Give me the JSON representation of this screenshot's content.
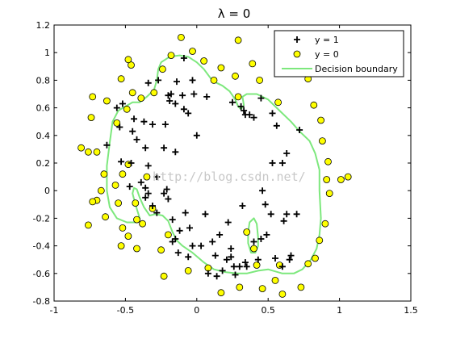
{
  "chart_data": {
    "type": "scatter",
    "title": "λ = 0",
    "xlabel": "",
    "ylabel": "",
    "xlim": [
      -1,
      1.5
    ],
    "ylim": [
      -0.8,
      1.2
    ],
    "grid": false,
    "legend_position": "top-right",
    "xticks": [
      "-1",
      "-0.5",
      "0",
      "0.5",
      "1",
      "1.5"
    ],
    "xtick_values": [
      -1,
      -0.5,
      0,
      0.5,
      1,
      1.5
    ],
    "yticks": [
      "-0.8",
      "-0.6",
      "-0.4",
      "-0.2",
      "0",
      "0.2",
      "0.4",
      "0.6",
      "0.8",
      "1",
      "1.2"
    ],
    "ytick_values": [
      -0.8,
      -0.6,
      -0.4,
      -0.2,
      0,
      0.2,
      0.4,
      0.6,
      0.8,
      1,
      1.2
    ],
    "watermark": "http://blog.csdn.net/",
    "series": [
      {
        "name": "y = 1",
        "marker": "plus",
        "color": "#000000",
        "points": [
          [
            -0.09,
            0.96
          ],
          [
            -0.03,
            0.8
          ],
          [
            -0.14,
            0.79
          ],
          [
            -0.27,
            0.8
          ],
          [
            -0.34,
            0.78
          ],
          [
            -0.2,
            0.69
          ],
          [
            -0.18,
            0.7
          ],
          [
            -0.1,
            0.69
          ],
          [
            -0.02,
            0.7
          ],
          [
            0.07,
            0.68
          ],
          [
            -0.19,
            0.65
          ],
          [
            -0.15,
            0.63
          ],
          [
            -0.09,
            0.59
          ],
          [
            -0.06,
            0.56
          ],
          [
            0.31,
            0.61
          ],
          [
            0.33,
            0.58
          ],
          [
            0.34,
            0.55
          ],
          [
            0.4,
            0.53
          ],
          [
            0.37,
            0.55
          ],
          [
            0.25,
            0.64
          ],
          [
            0.45,
            0.67
          ],
          [
            0.56,
            0.47
          ],
          [
            0.72,
            0.44
          ],
          [
            -0.52,
            0.63
          ],
          [
            -0.56,
            0.6
          ],
          [
            -0.44,
            0.52
          ],
          [
            -0.37,
            0.5
          ],
          [
            -0.31,
            0.48
          ],
          [
            -0.22,
            0.48
          ],
          [
            -0.54,
            0.46
          ],
          [
            -0.45,
            0.43
          ],
          [
            -0.42,
            0.37
          ],
          [
            -0.63,
            0.33
          ],
          [
            -0.36,
            0.31
          ],
          [
            -0.23,
            0.31
          ],
          [
            -0.15,
            0.28
          ],
          [
            0.0,
            0.4
          ],
          [
            -0.53,
            0.21
          ],
          [
            -0.46,
            0.2
          ],
          [
            -0.34,
            0.18
          ],
          [
            -0.28,
            0.1
          ],
          [
            -0.36,
            0.02
          ],
          [
            -0.21,
            0.01
          ],
          [
            -0.23,
            -0.02
          ],
          [
            -0.34,
            -0.02
          ],
          [
            -0.31,
            -0.11
          ],
          [
            -0.28,
            -0.16
          ],
          [
            -0.2,
            -0.06
          ],
          [
            -0.17,
            -0.21
          ],
          [
            -0.12,
            -0.29
          ],
          [
            -0.15,
            -0.35
          ],
          [
            -0.08,
            -0.16
          ],
          [
            0.06,
            -0.17
          ],
          [
            0.11,
            -0.37
          ],
          [
            -0.05,
            -0.27
          ],
          [
            0.22,
            -0.23
          ],
          [
            0.24,
            -0.42
          ],
          [
            0.16,
            -0.32
          ],
          [
            0.32,
            -0.11
          ],
          [
            0.46,
            0.0
          ],
          [
            0.48,
            -0.1
          ],
          [
            0.49,
            -0.32
          ],
          [
            0.45,
            -0.35
          ],
          [
            0.63,
            -0.17
          ],
          [
            0.61,
            -0.22
          ],
          [
            0.7,
            -0.17
          ],
          [
            0.4,
            -0.37
          ],
          [
            0.43,
            -0.5
          ],
          [
            0.55,
            -0.49
          ],
          [
            0.65,
            -0.5
          ],
          [
            0.6,
            -0.55
          ],
          [
            0.53,
            0.2
          ],
          [
            0.6,
            0.2
          ],
          [
            0.63,
            0.27
          ],
          [
            0.53,
            0.56
          ],
          [
            -0.03,
            -0.4
          ],
          [
            -0.17,
            -0.37
          ],
          [
            -0.13,
            -0.45
          ],
          [
            -0.06,
            -0.48
          ],
          [
            0.03,
            -0.4
          ],
          [
            0.13,
            -0.47
          ],
          [
            0.21,
            -0.5
          ],
          [
            0.26,
            -0.55
          ],
          [
            0.3,
            -0.55
          ],
          [
            0.35,
            -0.55
          ],
          [
            0.18,
            -0.58
          ],
          [
            0.14,
            -0.62
          ],
          [
            0.08,
            -0.6
          ],
          [
            0.24,
            -0.48
          ],
          [
            0.34,
            -0.52
          ],
          [
            -0.39,
            0.06
          ],
          [
            -0.47,
            0.03
          ],
          [
            -0.36,
            -0.05
          ],
          [
            0.52,
            -0.17
          ],
          [
            0.66,
            -0.47
          ],
          [
            0.27,
            -0.61
          ]
        ]
      },
      {
        "name": "y = 0",
        "marker": "circle",
        "color": "#ffff00",
        "points": [
          [
            -0.81,
            0.31
          ],
          [
            -0.76,
            0.28
          ],
          [
            -0.74,
            0.53
          ],
          [
            -0.73,
            0.68
          ],
          [
            -0.7,
            0.28
          ],
          [
            -0.65,
            0.12
          ],
          [
            -0.67,
            0.0
          ],
          [
            -0.7,
            -0.07
          ],
          [
            -0.73,
            -0.08
          ],
          [
            -0.76,
            -0.25
          ],
          [
            -0.64,
            -0.19
          ],
          [
            -0.63,
            0.65
          ],
          [
            -0.56,
            0.49
          ],
          [
            -0.49,
            0.59
          ],
          [
            -0.39,
            0.67
          ],
          [
            -0.53,
            0.81
          ],
          [
            -0.46,
            0.91
          ],
          [
            -0.45,
            0.71
          ],
          [
            -0.48,
            0.95
          ],
          [
            -0.3,
            0.71
          ],
          [
            -0.24,
            0.88
          ],
          [
            -0.18,
            0.98
          ],
          [
            -0.11,
            1.11
          ],
          [
            -0.03,
            1.01
          ],
          [
            0.05,
            0.94
          ],
          [
            0.12,
            0.8
          ],
          [
            0.17,
            0.89
          ],
          [
            0.27,
            0.83
          ],
          [
            0.29,
            1.09
          ],
          [
            0.39,
            0.92
          ],
          [
            0.44,
            0.8
          ],
          [
            0.57,
            0.64
          ],
          [
            0.63,
            0.91
          ],
          [
            0.78,
            0.81
          ],
          [
            0.82,
            0.62
          ],
          [
            0.87,
            0.51
          ],
          [
            0.88,
            0.36
          ],
          [
            0.91,
            0.08
          ],
          [
            1.01,
            0.08
          ],
          [
            0.92,
            0.21
          ],
          [
            0.93,
            -0.02
          ],
          [
            0.9,
            -0.24
          ],
          [
            0.86,
            -0.36
          ],
          [
            0.83,
            -0.49
          ],
          [
            0.78,
            -0.53
          ],
          [
            0.73,
            -0.7
          ],
          [
            0.58,
            -0.54
          ],
          [
            0.55,
            -0.65
          ],
          [
            0.46,
            -0.71
          ],
          [
            0.42,
            -0.54
          ],
          [
            0.4,
            -0.42
          ],
          [
            0.35,
            -0.3
          ],
          [
            0.3,
            -0.7
          ],
          [
            0.17,
            -0.74
          ],
          [
            0.08,
            -0.56
          ],
          [
            -0.06,
            -0.58
          ],
          [
            -0.23,
            -0.62
          ],
          [
            -0.25,
            -0.43
          ],
          [
            -0.42,
            -0.42
          ],
          [
            -0.48,
            -0.33
          ],
          [
            -0.52,
            -0.27
          ],
          [
            -0.38,
            -0.24
          ],
          [
            -0.43,
            -0.09
          ],
          [
            -0.55,
            -0.09
          ],
          [
            -0.57,
            0.04
          ],
          [
            -0.52,
            0.12
          ],
          [
            -0.48,
            0.19
          ],
          [
            -0.42,
            -0.21
          ],
          [
            -0.31,
            -0.13
          ],
          [
            -0.2,
            -0.32
          ],
          [
            0.29,
            0.68
          ],
          [
            1.06,
            0.1
          ],
          [
            -0.35,
            0.1
          ],
          [
            0.6,
            -0.75
          ],
          [
            -0.53,
            -0.4
          ]
        ]
      },
      {
        "name": "Decision boundary",
        "marker": "line",
        "color": "#7de87d",
        "path": [
          [
            -0.55,
            0.58
          ],
          [
            -0.45,
            0.64
          ],
          [
            -0.4,
            0.64
          ],
          [
            -0.35,
            0.68
          ],
          [
            -0.3,
            0.73
          ],
          [
            -0.28,
            0.8
          ],
          [
            -0.27,
            0.88
          ],
          [
            -0.25,
            0.93
          ],
          [
            -0.19,
            0.97
          ],
          [
            -0.12,
            0.98
          ],
          [
            -0.06,
            0.97
          ],
          [
            0.0,
            0.93
          ],
          [
            0.05,
            0.88
          ],
          [
            0.1,
            0.81
          ],
          [
            0.14,
            0.78
          ],
          [
            0.18,
            0.76
          ],
          [
            0.23,
            0.72
          ],
          [
            0.27,
            0.66
          ],
          [
            0.29,
            0.61
          ],
          [
            0.31,
            0.59
          ],
          [
            0.33,
            0.62
          ],
          [
            0.32,
            0.68
          ],
          [
            0.35,
            0.7
          ],
          [
            0.42,
            0.7
          ],
          [
            0.5,
            0.66
          ],
          [
            0.58,
            0.58
          ],
          [
            0.66,
            0.5
          ],
          [
            0.72,
            0.43
          ],
          [
            0.79,
            0.36
          ],
          [
            0.83,
            0.27
          ],
          [
            0.86,
            0.15
          ],
          [
            0.86,
            0.0
          ],
          [
            0.87,
            -0.2
          ],
          [
            0.86,
            -0.32
          ],
          [
            0.84,
            -0.42
          ],
          [
            0.8,
            -0.5
          ],
          [
            0.74,
            -0.57
          ],
          [
            0.68,
            -0.6
          ],
          [
            0.6,
            -0.6
          ],
          [
            0.5,
            -0.57
          ],
          [
            0.43,
            -0.58
          ],
          [
            0.35,
            -0.6
          ],
          [
            0.28,
            -0.6
          ],
          [
            0.2,
            -0.59
          ],
          [
            0.12,
            -0.57
          ],
          [
            0.05,
            -0.52
          ],
          [
            -0.03,
            -0.45
          ],
          [
            -0.1,
            -0.4
          ],
          [
            -0.14,
            -0.36
          ],
          [
            -0.17,
            -0.3
          ],
          [
            -0.2,
            -0.22
          ],
          [
            -0.24,
            -0.18
          ],
          [
            -0.29,
            -0.17
          ],
          [
            -0.33,
            -0.18
          ],
          [
            -0.37,
            -0.12
          ],
          [
            -0.4,
            -0.05
          ],
          [
            -0.42,
            0.01
          ],
          [
            -0.44,
            0.02
          ],
          [
            -0.45,
            -0.02
          ],
          [
            -0.43,
            -0.1
          ],
          [
            -0.4,
            -0.2
          ],
          [
            -0.43,
            -0.23
          ],
          [
            -0.49,
            -0.23
          ],
          [
            -0.56,
            -0.2
          ],
          [
            -0.61,
            -0.12
          ],
          [
            -0.63,
            0.0
          ],
          [
            -0.63,
            0.18
          ],
          [
            -0.61,
            0.35
          ],
          [
            -0.59,
            0.5
          ],
          [
            -0.55,
            0.58
          ]
        ],
        "inner_path": [
          [
            0.43,
            -0.34
          ],
          [
            0.42,
            -0.24
          ],
          [
            0.4,
            -0.2
          ],
          [
            0.37,
            -0.23
          ],
          [
            0.36,
            -0.3
          ],
          [
            0.36,
            -0.38
          ],
          [
            0.38,
            -0.45
          ],
          [
            0.41,
            -0.45
          ],
          [
            0.43,
            -0.4
          ],
          [
            0.43,
            -0.34
          ]
        ]
      }
    ]
  }
}
